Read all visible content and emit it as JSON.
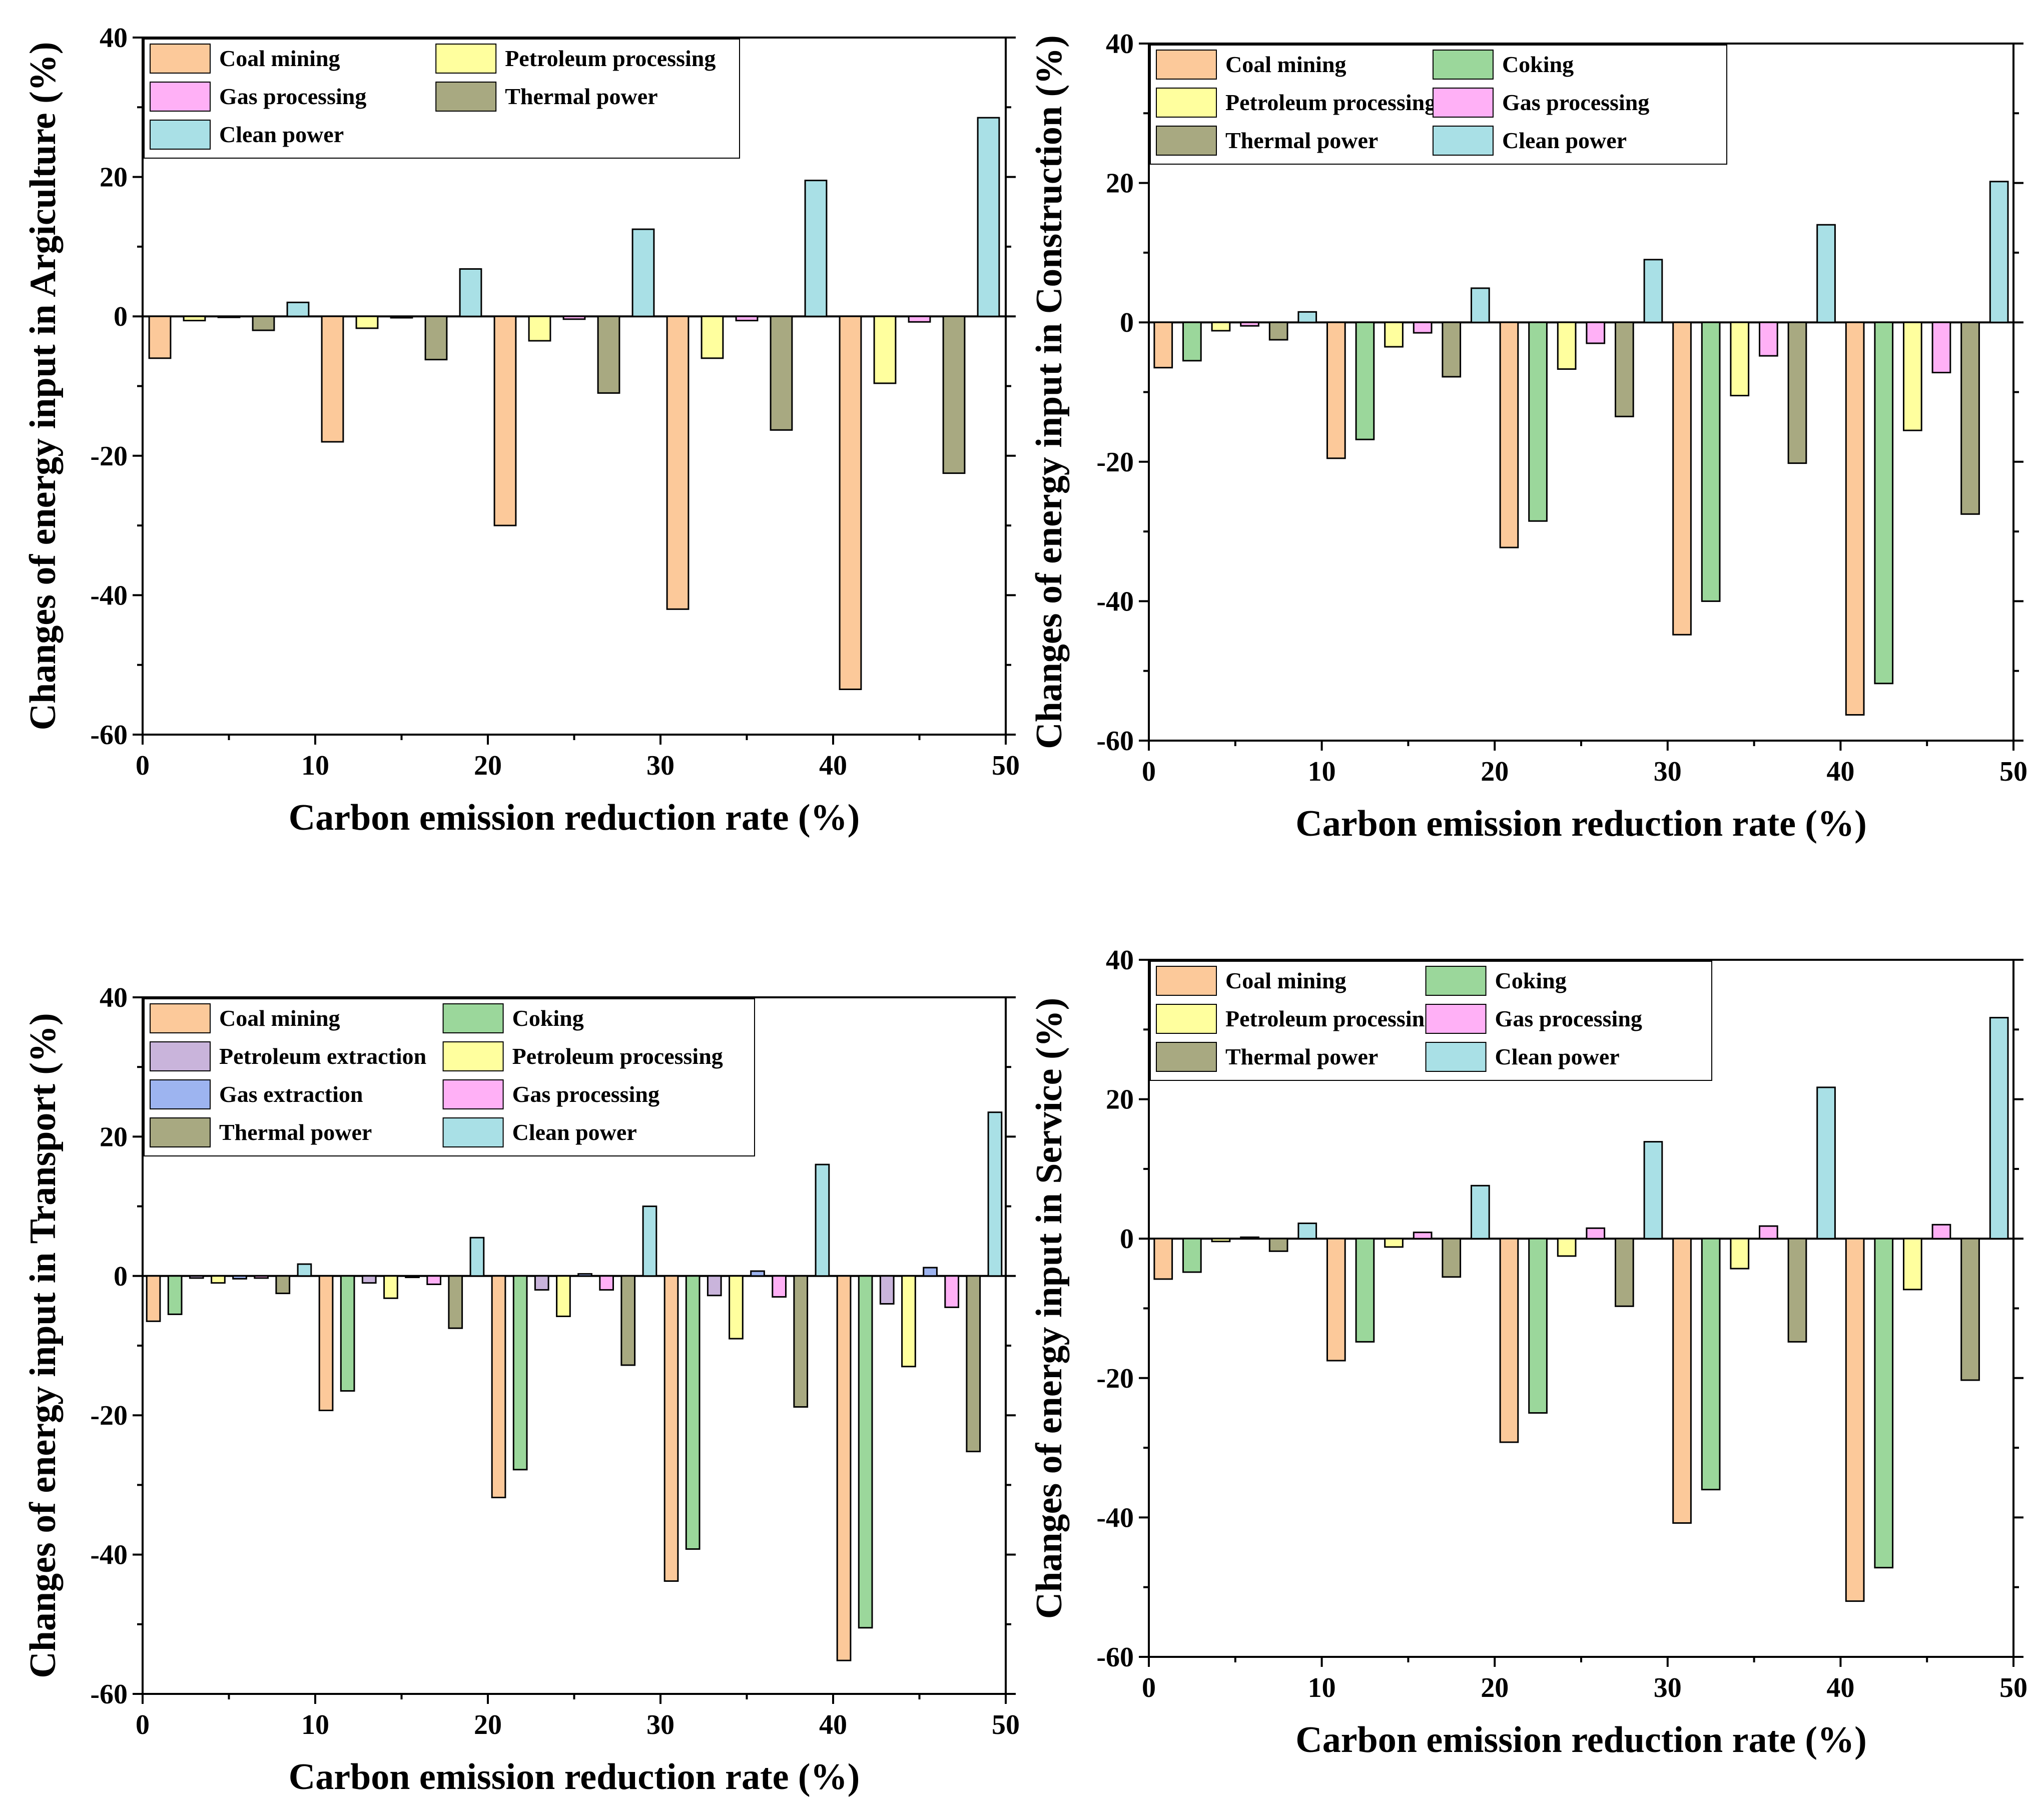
{
  "colors": {
    "Coal mining": "#fcc99a",
    "Coking": "#9bd79b",
    "Petroleum extraction": "#c9b4db",
    "Petroleum processing": "#ffff9e",
    "Gas extraction": "#9db4f0",
    "Gas processing": "#ffb0f6",
    "Thermal power": "#a8a981",
    "Clean power": "#a9e0e6"
  },
  "chart_data": [
    {
      "type": "bar",
      "title": "",
      "xlabel": "Carbon emission reduction rate (%)",
      "ylabel": "Changes of energy input in Argiculture (%)",
      "xlim": [
        0,
        50
      ],
      "ylim": [
        -60,
        40
      ],
      "xticks": [
        "0",
        "10",
        "20",
        "30",
        "40",
        "50"
      ],
      "yticks": [
        "40",
        "20",
        "0",
        "-20",
        "-40",
        "-60"
      ],
      "group_centers": [
        5,
        15,
        25,
        35,
        45
      ],
      "legend_columns": 2,
      "series": [
        {
          "name": "Coal mining",
          "values": [
            -6.0,
            -18.0,
            -30.0,
            -42.0,
            -53.5
          ]
        },
        {
          "name": "Petroleum processing",
          "values": [
            -0.6,
            -1.7,
            -3.5,
            -6.0,
            -9.6
          ]
        },
        {
          "name": "Gas processing",
          "values": [
            -0.1,
            -0.2,
            -0.4,
            -0.6,
            -0.8
          ]
        },
        {
          "name": "Thermal power",
          "values": [
            -2.0,
            -6.2,
            -11.0,
            -16.3,
            -22.5
          ]
        },
        {
          "name": "Clean power",
          "values": [
            2.0,
            6.8,
            12.5,
            19.5,
            28.5
          ]
        }
      ]
    },
    {
      "type": "bar",
      "title": "",
      "xlabel": "Carbon emission reduction rate (%)",
      "ylabel": "Changes of energy input in Construction (%)",
      "xlim": [
        0,
        50
      ],
      "ylim": [
        -60,
        40
      ],
      "xticks": [
        "0",
        "10",
        "20",
        "30",
        "40",
        "50"
      ],
      "yticks": [
        "40",
        "20",
        "0",
        "-20",
        "-40",
        "-60"
      ],
      "group_centers": [
        5,
        15,
        25,
        35,
        45
      ],
      "legend_columns": 2,
      "series": [
        {
          "name": "Coal mining",
          "values": [
            -6.5,
            -19.5,
            -32.3,
            -44.8,
            -56.3
          ]
        },
        {
          "name": "Coking",
          "values": [
            -5.5,
            -16.8,
            -28.5,
            -40.0,
            -51.8
          ]
        },
        {
          "name": "Petroleum processing",
          "values": [
            -1.2,
            -3.5,
            -6.7,
            -10.5,
            -15.5
          ]
        },
        {
          "name": "Gas processing",
          "values": [
            -0.5,
            -1.5,
            -3.0,
            -4.8,
            -7.2
          ]
        },
        {
          "name": "Thermal power",
          "values": [
            -2.5,
            -7.8,
            -13.5,
            -20.2,
            -27.5
          ]
        },
        {
          "name": "Clean power",
          "values": [
            1.5,
            4.9,
            9.0,
            14.0,
            20.2
          ]
        }
      ]
    },
    {
      "type": "bar",
      "title": "",
      "xlabel": "Carbon emission reduction rate (%)",
      "ylabel": "Changes of energy input in Transport (%)",
      "xlim": [
        0,
        50
      ],
      "ylim": [
        -60,
        40
      ],
      "xticks": [
        "0",
        "10",
        "20",
        "30",
        "40",
        "50"
      ],
      "yticks": [
        "40",
        "20",
        "0",
        "-20",
        "-40",
        "-60"
      ],
      "group_centers": [
        5,
        15,
        25,
        35,
        45
      ],
      "legend_columns": 2,
      "series": [
        {
          "name": "Coal mining",
          "values": [
            -6.5,
            -19.3,
            -31.8,
            -43.8,
            -55.2
          ]
        },
        {
          "name": "Coking",
          "values": [
            -5.5,
            -16.5,
            -27.8,
            -39.2,
            -50.5
          ]
        },
        {
          "name": "Petroleum extraction",
          "values": [
            -0.3,
            -1.0,
            -2.0,
            -2.8,
            -4.0
          ]
        },
        {
          "name": "Petroleum processing",
          "values": [
            -1.0,
            -3.2,
            -5.8,
            -9.0,
            -13.0
          ]
        },
        {
          "name": "Gas extraction",
          "values": [
            -0.4,
            -0.2,
            0.3,
            0.7,
            1.2
          ]
        },
        {
          "name": "Gas processing",
          "values": [
            -0.3,
            -1.2,
            -2.0,
            -3.0,
            -4.5
          ]
        },
        {
          "name": "Thermal power",
          "values": [
            -2.5,
            -7.5,
            -12.8,
            -18.8,
            -25.2
          ]
        },
        {
          "name": "Clean power",
          "values": [
            1.7,
            5.5,
            10.0,
            16.0,
            23.5
          ]
        }
      ]
    },
    {
      "type": "bar",
      "title": "",
      "xlabel": "Carbon emission reduction rate (%)",
      "ylabel": "Changes of energy input in Service (%)",
      "xlim": [
        0,
        50
      ],
      "ylim": [
        -60,
        40
      ],
      "xticks": [
        "0",
        "10",
        "20",
        "30",
        "40",
        "50"
      ],
      "yticks": [
        "40",
        "20",
        "0",
        "-20",
        "-40",
        "-60"
      ],
      "group_centers": [
        5,
        15,
        25,
        35,
        45
      ],
      "legend_columns": 2,
      "series": [
        {
          "name": "Coal mining",
          "values": [
            -5.8,
            -17.5,
            -29.2,
            -40.8,
            -52.0
          ]
        },
        {
          "name": "Coking",
          "values": [
            -4.8,
            -14.8,
            -25.0,
            -36.0,
            -47.2
          ]
        },
        {
          "name": "Petroleum processing",
          "values": [
            -0.4,
            -1.2,
            -2.5,
            -4.3,
            -7.3
          ]
        },
        {
          "name": "Gas processing",
          "values": [
            0.2,
            0.9,
            1.5,
            1.8,
            2.0
          ]
        },
        {
          "name": "Thermal power",
          "values": [
            -1.8,
            -5.5,
            -9.7,
            -14.8,
            -20.3
          ]
        },
        {
          "name": "Clean power",
          "values": [
            2.2,
            7.6,
            13.9,
            21.7,
            31.7
          ]
        }
      ]
    }
  ]
}
